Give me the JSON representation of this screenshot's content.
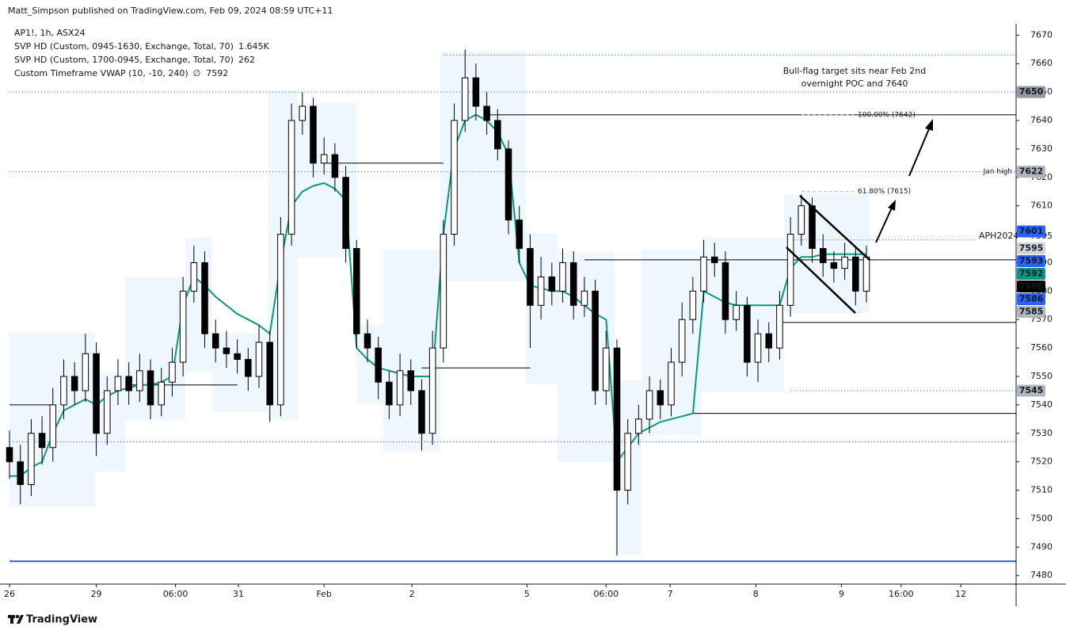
{
  "header": {
    "attribution": "Matt_Simpson published on TradingView.com, Feb 09, 2024 08:59 UTC+11"
  },
  "legend": {
    "symbol": "AP1!, 1h, ASX24",
    "indicators": [
      {
        "name": "SVP HD (Custom, 0945-1630, Exchange, Total, 70)",
        "value": "1.645K",
        "color": "#2962ff"
      },
      {
        "name": "SVP HD (Custom, 1700-0945, Exchange, Total, 70)",
        "value": "262",
        "color": "#b2b5be"
      },
      {
        "name": "Custom Timeframe VWAP (10, -10, 240)",
        "symbol": "∅",
        "value": "7592",
        "color": "#089981"
      }
    ]
  },
  "chart_data": {
    "type": "candlestick",
    "x": [
      0,
      1,
      2,
      3,
      4,
      5,
      6,
      7,
      8,
      9,
      10,
      11,
      12,
      13,
      14,
      15,
      16,
      17,
      18,
      19,
      20,
      21,
      22,
      23,
      24,
      25,
      26,
      27,
      28,
      29,
      30,
      31,
      32,
      33,
      34,
      35,
      36,
      37,
      38,
      39,
      40,
      41,
      42,
      43,
      44,
      45,
      46,
      47,
      48,
      49,
      50,
      51,
      52,
      53,
      54,
      55,
      56,
      57,
      58,
      59,
      60,
      61,
      62,
      63,
      64,
      65,
      66,
      67,
      68,
      69,
      70,
      71,
      72,
      73,
      74,
      75,
      76,
      77,
      78,
      79
    ],
    "open": [
      7525,
      7520,
      7512,
      7530,
      7525,
      7540,
      7550,
      7545,
      7558,
      7530,
      7545,
      7550,
      7545,
      7552,
      7540,
      7548,
      7555,
      7580,
      7590,
      7565,
      7560,
      7558,
      7556,
      7550,
      7562,
      7540,
      7600,
      7640,
      7645,
      7625,
      7628,
      7620,
      7595,
      7565,
      7560,
      7548,
      7540,
      7552,
      7545,
      7530,
      7560,
      7600,
      7640,
      7655,
      7645,
      7640,
      7630,
      7605,
      7595,
      7575,
      7585,
      7580,
      7590,
      7575,
      7580,
      7545,
      7560,
      7510,
      7530,
      7535,
      7545,
      7540,
      7555,
      7570,
      7580,
      7592,
      7590,
      7570,
      7575,
      7555,
      7565,
      7560,
      7575,
      7600,
      7610,
      7595,
      7590,
      7588,
      7592,
      7580
    ],
    "high": [
      7531,
      7526,
      7535,
      7536,
      7546,
      7556,
      7555,
      7565,
      7562,
      7550,
      7556,
      7555,
      7558,
      7556,
      7553,
      7560,
      7585,
      7596,
      7594,
      7570,
      7566,
      7563,
      7560,
      7568,
      7566,
      7606,
      7646,
      7650,
      7648,
      7634,
      7632,
      7624,
      7598,
      7570,
      7564,
      7552,
      7558,
      7556,
      7549,
      7566,
      7605,
      7646,
      7665,
      7660,
      7650,
      7644,
      7633,
      7610,
      7600,
      7592,
      7590,
      7595,
      7594,
      7585,
      7584,
      7566,
      7563,
      7535,
      7540,
      7550,
      7549,
      7560,
      7576,
      7585,
      7598,
      7597,
      7594,
      7580,
      7578,
      7570,
      7569,
      7580,
      7606,
      7614,
      7613,
      7600,
      7594,
      7597,
      7595,
      7596
    ],
    "low": [
      7514,
      7505,
      7508,
      7519,
      7520,
      7535,
      7540,
      7541,
      7522,
      7526,
      7540,
      7540,
      7541,
      7535,
      7536,
      7543,
      7550,
      7576,
      7560,
      7555,
      7553,
      7551,
      7545,
      7546,
      7534,
      7536,
      7596,
      7635,
      7620,
      7621,
      7615,
      7590,
      7560,
      7555,
      7542,
      7535,
      7536,
      7540,
      7524,
      7526,
      7555,
      7596,
      7636,
      7640,
      7635,
      7626,
      7600,
      7590,
      7560,
      7570,
      7575,
      7576,
      7570,
      7571,
      7540,
      7540,
      7487,
      7505,
      7526,
      7530,
      7535,
      7536,
      7550,
      7565,
      7576,
      7585,
      7565,
      7566,
      7550,
      7548,
      7555,
      7556,
      7571,
      7596,
      7590,
      7585,
      7583,
      7584,
      7575,
      7576
    ],
    "close": [
      7520,
      7512,
      7530,
      7525,
      7540,
      7550,
      7545,
      7558,
      7530,
      7545,
      7550,
      7545,
      7552,
      7540,
      7548,
      7555,
      7580,
      7590,
      7565,
      7560,
      7558,
      7556,
      7550,
      7562,
      7540,
      7600,
      7640,
      7645,
      7625,
      7628,
      7620,
      7595,
      7565,
      7560,
      7548,
      7540,
      7552,
      7545,
      7530,
      7560,
      7600,
      7640,
      7655,
      7645,
      7640,
      7630,
      7605,
      7595,
      7575,
      7585,
      7580,
      7590,
      7575,
      7580,
      7545,
      7560,
      7510,
      7530,
      7535,
      7545,
      7540,
      7555,
      7570,
      7580,
      7592,
      7590,
      7570,
      7575,
      7555,
      7565,
      7560,
      7575,
      7600,
      7610,
      7595,
      7590,
      7588,
      7592,
      7580,
      7592
    ],
    "vwap": {
      "color": "#089981",
      "values": [
        7515,
        7515,
        7518,
        7520,
        7530,
        7538,
        7540,
        7542,
        7540,
        7543,
        7545,
        7546,
        7547,
        7547,
        7548,
        7550,
        7575,
        7585,
        7582,
        7578,
        7575,
        7572,
        7570,
        7568,
        7565,
        7590,
        7610,
        7615,
        7617,
        7618,
        7616,
        7612,
        7560,
        7556,
        7553,
        7552,
        7551,
        7550,
        7550,
        7550,
        7600,
        7630,
        7640,
        7642,
        7640,
        7636,
        7628,
        7590,
        7582,
        7581,
        7580,
        7580,
        7578,
        7575,
        7572,
        7570,
        7520,
        7525,
        7530,
        7532,
        7534,
        7535,
        7536,
        7537,
        7580,
        7578,
        7576,
        7575,
        7575,
        7575,
        7575,
        7575,
        7588,
        7592,
        7592,
        7593,
        7593,
        7593,
        7593,
        7593
      ]
    },
    "xlim": [
      0,
      92.8
    ],
    "xticks": [
      {
        "value": 0,
        "label": "26"
      },
      {
        "value": 8,
        "label": "29"
      },
      {
        "value": 15.3,
        "label": "06:00"
      },
      {
        "value": 21.1,
        "label": "31"
      },
      {
        "value": 29,
        "label": "Feb"
      },
      {
        "value": 37.1,
        "label": "2"
      },
      {
        "value": 47.7,
        "label": "5"
      },
      {
        "value": 55,
        "label": "06:00"
      },
      {
        "value": 60.9,
        "label": "7"
      },
      {
        "value": 68.8,
        "label": "8"
      },
      {
        "value": 76.7,
        "label": "9"
      },
      {
        "value": 82.2,
        "label": "16:00"
      },
      {
        "value": 87.7,
        "label": "12"
      }
    ],
    "ylim": [
      7477,
      7674
    ],
    "yticks": [
      7480,
      7490,
      7500,
      7510,
      7520,
      7530,
      7540,
      7550,
      7560,
      7570,
      7580,
      7590,
      7610,
      7620,
      7630,
      7640,
      7650,
      7660,
      7670
    ],
    "levels": [
      {
        "value": 7663,
        "style": "dotted",
        "from": 40
      },
      {
        "value": 7650,
        "style": "dotted",
        "from": 0
      },
      {
        "value": 7622,
        "style": "dotted",
        "from": 0,
        "label": "Jan high"
      },
      {
        "value": 7598,
        "style": "dotted",
        "from": 72,
        "to": 89
      },
      {
        "value": 7545,
        "style": "dotted",
        "from": 72
      },
      {
        "value": 7527,
        "style": "dotted",
        "from": 0
      },
      {
        "value": 7485,
        "style": "solid",
        "from": 0
      },
      {
        "value": 7642,
        "style": "poc",
        "from": 44
      },
      {
        "value": 7591,
        "style": "poc",
        "from": 53
      },
      {
        "value": 7569,
        "style": "poc",
        "from": 71
      },
      {
        "value": 7537,
        "style": "poc",
        "from": 63
      },
      {
        "value": 7553,
        "style": "poc",
        "from": 38,
        "to": 48
      },
      {
        "value": 7625,
        "style": "poc",
        "from": 29,
        "to": 40
      },
      {
        "value": 7547,
        "style": "poc",
        "from": 11,
        "to": 21
      },
      {
        "value": 7540,
        "style": "poc",
        "from": 0,
        "to": 4
      }
    ],
    "price_badges": [
      {
        "value": 7650,
        "color": "#9598a1",
        "text_color": "#131722"
      },
      {
        "value": 7622,
        "color": "#b2b5be",
        "text_color": "#131722"
      },
      {
        "value": 7601,
        "color": "#2962ff",
        "text_color": "#ffffff"
      },
      {
        "value": 7595,
        "color": "#d1d4dc",
        "text_color": "#131722"
      },
      {
        "value": 7593,
        "color": "#2962ff",
        "text_color": "#ffffff"
      },
      {
        "value": 7592,
        "color": "#089981",
        "text_color": "#ffffff"
      },
      {
        "value": 7588,
        "color": "#000000",
        "text_color": "#ffffff"
      },
      {
        "value": 7586,
        "color": "#2962ff",
        "text_color": "#ffffff"
      },
      {
        "value": 7585,
        "color": "#b2b5be",
        "text_color": "#131722"
      },
      {
        "value": 7545,
        "color": "#b2b5be",
        "text_color": "#131722"
      }
    ],
    "fib_levels": [
      {
        "label": "100.00% (7642)",
        "value": 7642
      },
      {
        "label": "61.80% (7615)",
        "value": 7615
      }
    ],
    "symbol_label": {
      "name": "APH2024",
      "price": "7595"
    },
    "annotation": [
      "Bull-flag target sits near Feb 2nd",
      "overnight POC and 7640"
    ]
  },
  "footer": {
    "brand": "TradingView"
  }
}
